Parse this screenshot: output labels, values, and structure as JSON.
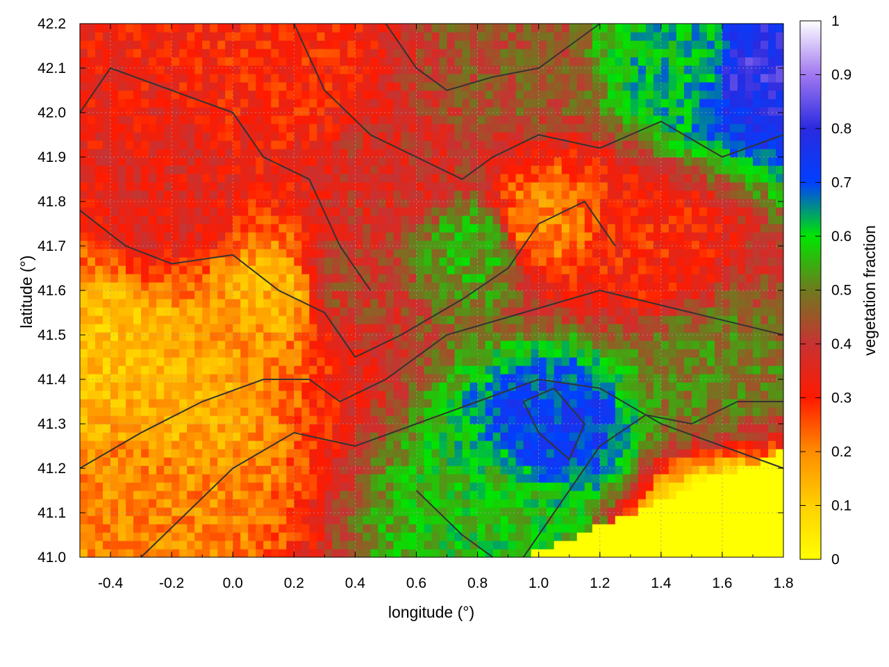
{
  "chart_data": {
    "type": "heatmap",
    "title": "",
    "xlabel": "longitude (°)",
    "ylabel": "latitude (°)",
    "colorbar_label": "vegetation fraction",
    "xlim": [
      -0.5,
      1.8
    ],
    "ylim": [
      41.0,
      42.2
    ],
    "clim": [
      0,
      1
    ],
    "x_ticks": [
      -0.4,
      -0.2,
      0.0,
      0.2,
      0.4,
      0.6,
      0.8,
      1.0,
      1.2,
      1.4,
      1.6,
      1.8
    ],
    "x_tick_labels": [
      "-0.4",
      "-0.2",
      "0.0",
      "0.2",
      "0.4",
      "0.6",
      "0.8",
      "1.0",
      "1.2",
      "1.4",
      "1.6",
      "1.8"
    ],
    "y_ticks": [
      41.0,
      41.1,
      41.2,
      41.3,
      41.4,
      41.5,
      41.6,
      41.7,
      41.8,
      41.9,
      42.0,
      42.1,
      42.2
    ],
    "y_tick_labels": [
      "41.0",
      "41.1",
      "41.2",
      "41.3",
      "41.4",
      "41.5",
      "41.6",
      "41.7",
      "41.8",
      "41.9",
      "42.0",
      "42.1",
      "42.2"
    ],
    "colorbar_ticks": [
      0,
      0.1,
      0.2,
      0.3,
      0.4,
      0.5,
      0.6,
      0.7,
      0.8,
      0.9,
      1
    ],
    "colorbar_tick_labels": [
      "0",
      "0.1",
      "0.2",
      "0.3",
      "0.4",
      "0.5",
      "0.6",
      "0.7",
      "0.8",
      "0.9",
      "1"
    ],
    "colormap": [
      {
        "value": 0.0,
        "color": "#ffff00"
      },
      {
        "value": 0.1,
        "color": "#ffd000"
      },
      {
        "value": 0.2,
        "color": "#ff8c00"
      },
      {
        "value": 0.3,
        "color": "#ff1a00"
      },
      {
        "value": 0.4,
        "color": "#c83232"
      },
      {
        "value": 0.5,
        "color": "#6e7a1e"
      },
      {
        "value": 0.6,
        "color": "#00e600"
      },
      {
        "value": 0.7,
        "color": "#0040ff"
      },
      {
        "value": 0.8,
        "color": "#2a2ae0"
      },
      {
        "value": 0.9,
        "color": "#a078f0"
      },
      {
        "value": 1.0,
        "color": "#ffffff"
      }
    ],
    "grid": true,
    "contour_color": "#333333",
    "regions": [
      {
        "lon": -0.4,
        "lat": 41.45,
        "value": 0.12
      },
      {
        "lon": -0.2,
        "lat": 41.35,
        "value": 0.15
      },
      {
        "lon": -0.3,
        "lat": 41.15,
        "value": 0.2
      },
      {
        "lon": 0.15,
        "lat": 41.6,
        "value": 0.15
      },
      {
        "lon": 0.35,
        "lat": 41.62,
        "value": 0.42
      },
      {
        "lon": 0.55,
        "lat": 41.85,
        "value": 0.38
      },
      {
        "lon": 0.8,
        "lat": 41.7,
        "value": 0.55
      },
      {
        "lon": 1.0,
        "lat": 41.75,
        "value": 0.2
      },
      {
        "lon": 1.35,
        "lat": 41.7,
        "value": 0.3
      },
      {
        "lon": 1.5,
        "lat": 42.12,
        "value": 0.62
      },
      {
        "lon": 1.7,
        "lat": 42.1,
        "value": 0.8
      },
      {
        "lon": 1.05,
        "lat": 41.3,
        "value": 0.72
      },
      {
        "lon": 0.85,
        "lat": 41.1,
        "value": 0.58
      },
      {
        "lon": 1.55,
        "lat": 41.42,
        "value": 0.5
      },
      {
        "lon": 1.6,
        "lat": 41.05,
        "value": 0.0
      },
      {
        "lon": 0.9,
        "lat": 42.1,
        "value": 0.45
      },
      {
        "lon": 0.2,
        "lat": 42.1,
        "value": 0.3
      },
      {
        "lon": -0.2,
        "lat": 41.8,
        "value": 0.35
      }
    ]
  }
}
